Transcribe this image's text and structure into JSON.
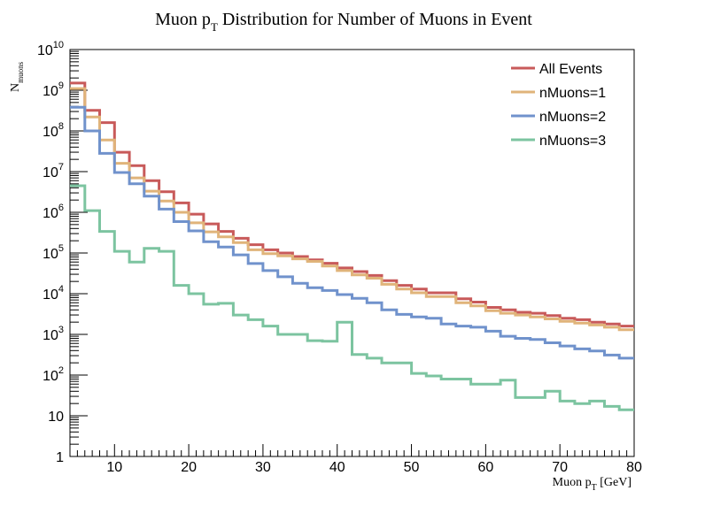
{
  "chart_data": {
    "type": "line",
    "title_main": "Muon p",
    "title_sub": "T",
    "title_rest": " Distribution for Number of Muons in Event",
    "xlabel_main": "Muon p",
    "xlabel_sub": "T",
    "xlabel_rest": " [GeV]",
    "ylabel_main": "N",
    "ylabel_sub": "muons",
    "xlim": [
      4,
      80
    ],
    "ylim": [
      1,
      10000000000
    ],
    "log_y": true,
    "step": true,
    "bin_width": 2,
    "x_ticks": [
      "10",
      "20",
      "30",
      "40",
      "50",
      "60",
      "70",
      "80"
    ],
    "y_tick_labels": [
      {
        "base": "1",
        "exp": ""
      },
      {
        "base": "10",
        "exp": ""
      },
      {
        "base": "10",
        "exp": "2"
      },
      {
        "base": "10",
        "exp": "3"
      },
      {
        "base": "10",
        "exp": "4"
      },
      {
        "base": "10",
        "exp": "5"
      },
      {
        "base": "10",
        "exp": "6"
      },
      {
        "base": "10",
        "exp": "7"
      },
      {
        "base": "10",
        "exp": "8"
      },
      {
        "base": "10",
        "exp": "9"
      },
      {
        "base": "10",
        "exp": "10"
      }
    ],
    "legend_position": "top-right",
    "x": [
      4,
      6,
      8,
      10,
      12,
      14,
      16,
      18,
      20,
      22,
      24,
      26,
      28,
      30,
      32,
      34,
      36,
      38,
      40,
      42,
      44,
      46,
      48,
      50,
      52,
      54,
      56,
      58,
      60,
      62,
      64,
      66,
      68,
      70,
      72,
      74,
      76,
      78
    ],
    "series": [
      {
        "name": "All Events",
        "color": "#c85a5a",
        "values": [
          1500000000,
          320000000,
          160000000,
          30000000,
          14000000,
          6000000,
          3200000,
          1700000,
          900000,
          520000,
          340000,
          230000,
          160000,
          120000,
          100000,
          82000,
          68000,
          56000,
          43000,
          35000,
          28000,
          21000,
          16000,
          13000,
          10500,
          10500,
          7500,
          6200,
          4600,
          4000,
          3500,
          3300,
          2900,
          2500,
          2300,
          2000,
          1800,
          1600
        ]
      },
      {
        "name": "nMuons=1",
        "color": "#e0b47a",
        "values": [
          1100000000,
          220000000,
          60000000,
          16000000,
          7000000,
          3300000,
          1900000,
          1000000,
          550000,
          330000,
          250000,
          180000,
          120000,
          96000,
          85000,
          72000,
          62000,
          48000,
          37000,
          29000,
          24000,
          17000,
          13000,
          10500,
          8500,
          8500,
          6000,
          5000,
          3800,
          3300,
          3000,
          2700,
          2400,
          2100,
          1900,
          1700,
          1500,
          1300
        ]
      },
      {
        "name": "nMuons=2",
        "color": "#7092cc",
        "values": [
          380000000,
          100000000,
          28000000,
          9500000,
          5000000,
          2500000,
          1200000,
          590000,
          350000,
          190000,
          140000,
          90000,
          55000,
          37000,
          26000,
          18000,
          14000,
          12000,
          9500,
          7700,
          6000,
          4000,
          3100,
          2700,
          2500,
          1800,
          1600,
          1500,
          1200,
          900,
          800,
          750,
          620,
          520,
          440,
          390,
          310,
          260
        ]
      },
      {
        "name": "nMuons=3",
        "color": "#7cc4a0",
        "values": [
          4500000,
          1100000,
          340000,
          110000,
          60000,
          130000,
          110000,
          16000,
          10000,
          5500,
          5800,
          3000,
          2300,
          1600,
          1000,
          1000,
          700,
          680,
          2000,
          320,
          260,
          200,
          200,
          110,
          95,
          80,
          80,
          60,
          60,
          75,
          28,
          28,
          40,
          23,
          20,
          23,
          17,
          14
        ]
      }
    ]
  }
}
